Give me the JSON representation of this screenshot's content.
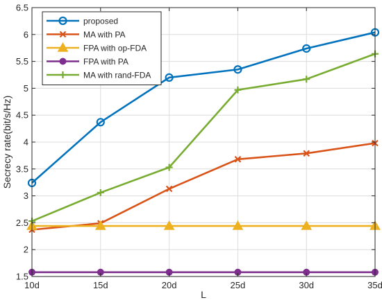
{
  "chart_data": {
    "type": "line",
    "xlabel": "L",
    "ylabel": "Secrecy rate(bit/s/Hz)",
    "categories": [
      "10d",
      "15d",
      "20d",
      "25d",
      "30d",
      "35d"
    ],
    "ylim": [
      1.5,
      6.5
    ],
    "yticks": [
      "1.5",
      "2",
      "2.5",
      "3",
      "3.5",
      "4",
      "4.5",
      "5",
      "5.5",
      "6",
      "6.5"
    ],
    "grid": true,
    "legend_position": "top-left",
    "series": [
      {
        "name": "proposed",
        "color": "#0072BD",
        "marker": "circle-open",
        "values": [
          3.24,
          4.37,
          5.2,
          5.35,
          5.74,
          6.04
        ]
      },
      {
        "name": "MA with PA",
        "color": "#D95319",
        "marker": "x",
        "values": [
          2.37,
          2.49,
          3.13,
          3.68,
          3.79,
          3.98
        ]
      },
      {
        "name": "FPA with op-FDA",
        "color": "#EDB120",
        "marker": "triangle",
        "values": [
          2.44,
          2.44,
          2.44,
          2.44,
          2.44,
          2.44
        ]
      },
      {
        "name": "FPA with PA",
        "color": "#7E2F8E",
        "marker": "circle-filled",
        "values": [
          1.58,
          1.58,
          1.58,
          1.58,
          1.58,
          1.58
        ]
      },
      {
        "name": "MA with rand-FDA",
        "color": "#77AC30",
        "marker": "plus",
        "values": [
          2.53,
          3.06,
          3.53,
          4.97,
          5.17,
          5.64
        ]
      }
    ]
  }
}
